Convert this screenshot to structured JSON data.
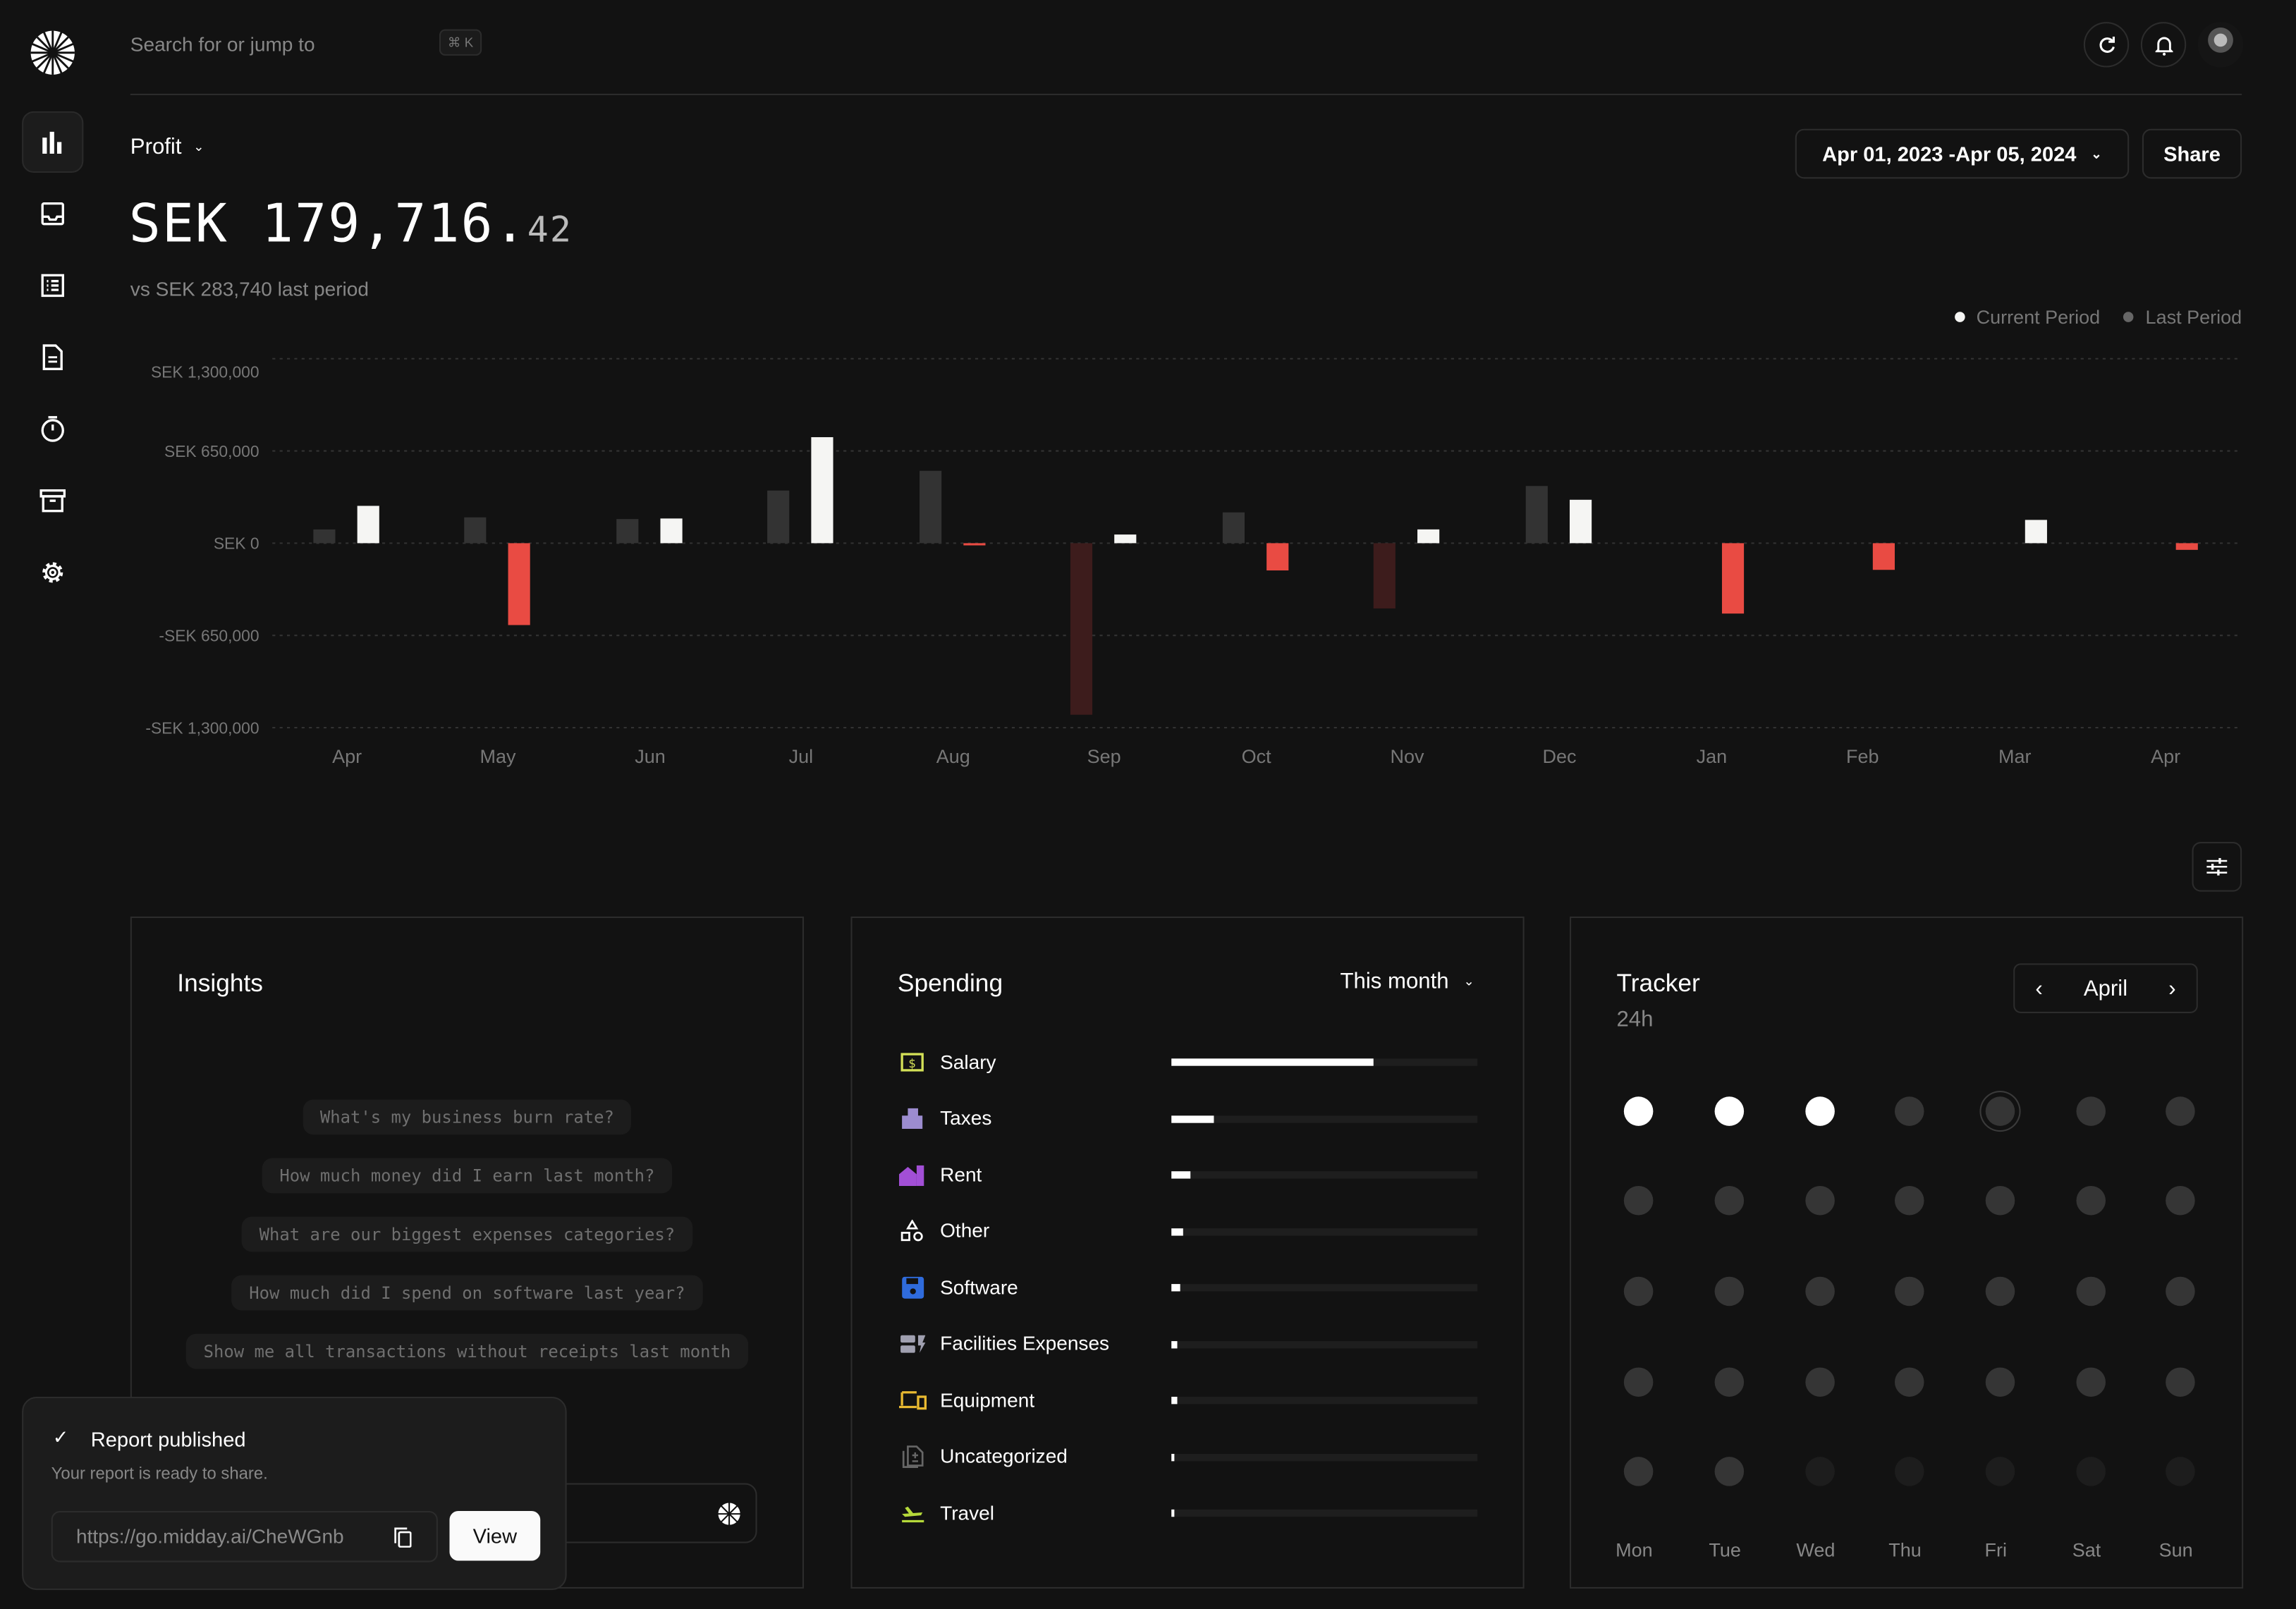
{
  "header": {
    "search_placeholder": "Search for or jump to",
    "shortcut": "⌘ K"
  },
  "sidebar": {
    "items": [
      {
        "icon": "bar-chart-icon",
        "active": true
      },
      {
        "icon": "inbox-icon"
      },
      {
        "icon": "transactions-list-icon"
      },
      {
        "icon": "invoice-document-icon"
      },
      {
        "icon": "timer-icon"
      },
      {
        "icon": "vault-archive-icon"
      },
      {
        "icon": "settings-gear-icon"
      }
    ]
  },
  "summary": {
    "metric": "Profit",
    "amount_main": "SEK 179,716.",
    "amount_cents": "42",
    "comparison": "vs SEK 283,740 last period"
  },
  "toolbar": {
    "date_range": "Apr 01, 2023 -Apr 05, 2024",
    "share": "Share"
  },
  "chart_data": {
    "type": "bar",
    "categories": [
      "Apr",
      "May",
      "Jun",
      "Jul",
      "Aug",
      "Sep",
      "Oct",
      "Nov",
      "Dec",
      "Jan",
      "Feb",
      "Mar",
      "Apr"
    ],
    "series": [
      {
        "name": "Last Period",
        "values": [
          97000,
          182000,
          170000,
          371000,
          510000,
          -1209000,
          217000,
          -460000,
          403000,
          0,
          0,
          0,
          0
        ],
        "color": "#333333",
        "negative_color": "#3d1c1c"
      },
      {
        "name": "Current Period",
        "values": [
          263000,
          -577000,
          174000,
          747000,
          -14000,
          61000,
          -192000,
          97000,
          306000,
          -496000,
          -188000,
          164000,
          -47000
        ],
        "color": "#f5f5f3",
        "negative_color": "#e94b43"
      }
    ],
    "yticks": [
      "SEK 1,300,000",
      "SEK 650,000",
      "SEK 0",
      "-SEK 650,000",
      "-SEK 1,300,000"
    ],
    "ytick_values": [
      1300000,
      650000,
      0,
      -650000,
      -1300000
    ],
    "ylim": [
      -1300000,
      1300000
    ],
    "grid": true,
    "legend": {
      "position": "top-right",
      "items": [
        "Current Period",
        "Last Period"
      ]
    }
  },
  "insights": {
    "title": "Insights",
    "suggestions": [
      "What's my business burn rate?",
      "How much money did I earn last month?",
      "What are our biggest expenses categories?",
      "How much did I spend on software last year?",
      "Show me all transactions without receipts last month"
    ]
  },
  "spending": {
    "title": "Spending",
    "period": "This month",
    "items": [
      {
        "label": "Salary",
        "icon": "salary-icon",
        "color": "#d4e157",
        "share": 0.66
      },
      {
        "label": "Taxes",
        "icon": "taxes-building-icon",
        "color": "#9c8ccf",
        "share": 0.14
      },
      {
        "label": "Rent",
        "icon": "rent-house-icon",
        "color": "#a24fd6",
        "share": 0.06
      },
      {
        "label": "Other",
        "icon": "other-shapes-icon",
        "color": "#ffffff",
        "share": 0.04
      },
      {
        "label": "Software",
        "icon": "software-floppy-icon",
        "color": "#2f6bdc",
        "share": 0.03
      },
      {
        "label": "Facilities Expenses",
        "icon": "facilities-icon",
        "color": "#a0a0b0",
        "share": 0.02
      },
      {
        "label": "Equipment",
        "icon": "equipment-devices-icon",
        "color": "#e8b931",
        "share": 0.02
      },
      {
        "label": "Uncategorized",
        "icon": "uncategorized-doc-icon",
        "color": "#666666",
        "share": 0.01
      },
      {
        "label": "Travel",
        "icon": "travel-plane-icon",
        "color": "#b5d93a",
        "share": 0.01
      }
    ]
  },
  "tracker": {
    "title": "Tracker",
    "total": "24h",
    "month": "April",
    "days": [
      "Mon",
      "Tue",
      "Wed",
      "Thu",
      "Fri",
      "Sat",
      "Sun"
    ],
    "weeks": [
      [
        "active",
        "active",
        "active",
        "empty",
        "today",
        "empty",
        "empty"
      ],
      [
        "empty",
        "empty",
        "empty",
        "empty",
        "empty",
        "empty",
        "empty"
      ],
      [
        "empty",
        "empty",
        "empty",
        "empty",
        "empty",
        "empty",
        "empty"
      ],
      [
        "empty",
        "empty",
        "empty",
        "empty",
        "empty",
        "empty",
        "empty"
      ],
      [
        "empty",
        "empty",
        "future",
        "future",
        "future",
        "future",
        "future"
      ]
    ]
  },
  "toast": {
    "title": "Report published",
    "message": "Your report is ready to share.",
    "link": "https://go.midday.ai/CheWGnb",
    "view": "View"
  }
}
